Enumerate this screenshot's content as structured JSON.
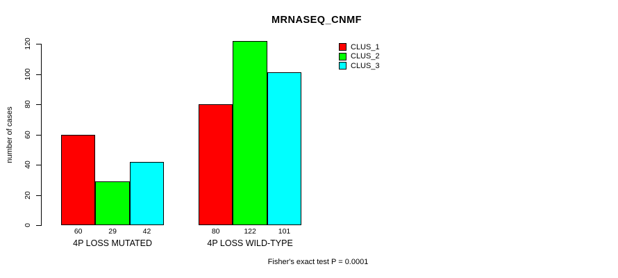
{
  "chart_data": {
    "type": "bar",
    "title": "MRNASEQ_CNMF",
    "xlabel": "",
    "ylabel": "number of cases",
    "ylim": [
      0,
      120
    ],
    "yticks": [
      0,
      20,
      40,
      60,
      80,
      100,
      120
    ],
    "categories": [
      "4P LOSS MUTATED",
      "4P LOSS WILD-TYPE"
    ],
    "series": [
      {
        "name": "CLUS_1",
        "color": "#ff0000",
        "values": [
          60,
          80
        ]
      },
      {
        "name": "CLUS_2",
        "color": "#00ff00",
        "values": [
          29,
          122
        ]
      },
      {
        "name": "CLUS_3",
        "color": "#00ffff",
        "values": [
          42,
          101
        ]
      }
    ],
    "bar_value_labels": [
      [
        "60",
        "29",
        "42"
      ],
      [
        "80",
        "122",
        "101"
      ]
    ],
    "legend_position": "top-right",
    "grid": false,
    "annotation": "Fisher's exact test P = 0.0001"
  },
  "colors": {
    "background": "#ffffff",
    "axis": "#000000",
    "bar_border": "#000000"
  }
}
